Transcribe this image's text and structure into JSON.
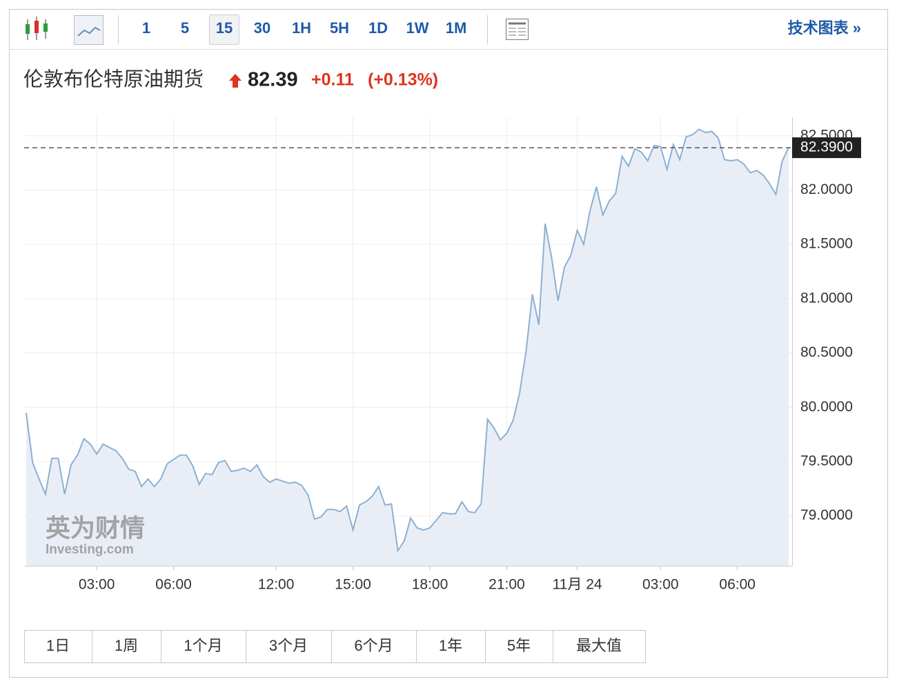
{
  "toolbar": {
    "intervals": [
      "1",
      "5",
      "15",
      "30",
      "1H",
      "5H",
      "1D",
      "1W",
      "1M"
    ],
    "active_interval_index": 2,
    "link": "技术图表 »"
  },
  "header": {
    "title": "伦敦布伦特原油期货",
    "price": "82.39",
    "change": "+0.11",
    "change_pct": "(+0.13%)"
  },
  "chart_data": {
    "type": "area",
    "categories": [
      null,
      null,
      null,
      null,
      null,
      null,
      null,
      null,
      null,
      null,
      null,
      "03:00",
      null,
      null,
      null,
      null,
      null,
      null,
      null,
      null,
      null,
      null,
      null,
      "06:00",
      null,
      null,
      null,
      null,
      null,
      null,
      null,
      null,
      null,
      null,
      null,
      null,
      null,
      null,
      null,
      "12:00",
      null,
      null,
      null,
      null,
      null,
      null,
      null,
      null,
      null,
      null,
      null,
      "15:00",
      null,
      null,
      null,
      null,
      null,
      null,
      null,
      null,
      null,
      null,
      null,
      "18:00",
      null,
      null,
      null,
      null,
      null,
      null,
      null,
      null,
      null,
      null,
      null,
      "21:00",
      null,
      null,
      null,
      null,
      null,
      null,
      null,
      null,
      null,
      null,
      "11月 24",
      null,
      null,
      null,
      null,
      null,
      null,
      null,
      null,
      null,
      null,
      null,
      null,
      "03:00",
      null,
      null,
      null,
      null,
      null,
      null,
      null,
      null,
      null,
      null,
      null,
      "06:00",
      null,
      null,
      null,
      null,
      null,
      null,
      null,
      null
    ],
    "values": [
      79.95,
      79.49,
      79.34,
      79.2,
      79.53,
      79.53,
      79.2,
      79.47,
      79.56,
      79.71,
      79.66,
      79.57,
      79.66,
      79.63,
      79.6,
      79.53,
      79.43,
      79.41,
      79.27,
      79.34,
      79.27,
      79.34,
      79.48,
      79.52,
      79.56,
      79.56,
      79.46,
      79.29,
      79.39,
      79.38,
      79.49,
      79.51,
      79.41,
      79.42,
      79.44,
      79.41,
      79.47,
      79.36,
      79.31,
      79.34,
      79.32,
      79.3,
      79.31,
      79.28,
      79.19,
      78.97,
      78.99,
      79.06,
      79.06,
      79.04,
      79.09,
      78.87,
      79.1,
      79.13,
      79.18,
      79.27,
      79.1,
      79.11,
      78.68,
      78.77,
      78.98,
      78.89,
      78.87,
      78.89,
      78.96,
      79.03,
      79.02,
      79.02,
      79.13,
      79.04,
      79.03,
      79.11,
      79.89,
      79.81,
      79.7,
      79.76,
      79.88,
      80.13,
      80.51,
      81.04,
      80.76,
      81.69,
      81.38,
      80.98,
      81.29,
      81.4,
      81.63,
      81.5,
      81.81,
      82.03,
      81.77,
      81.9,
      81.97,
      82.31,
      82.22,
      82.38,
      82.35,
      82.27,
      82.41,
      82.4,
      82.19,
      82.42,
      82.28,
      82.49,
      82.51,
      82.56,
      82.53,
      82.54,
      82.48,
      82.28,
      82.27,
      82.28,
      82.24,
      82.16,
      82.18,
      82.14,
      82.06,
      81.96,
      82.27,
      82.39
    ],
    "color": "#8bb0d3",
    "fill": "#e9eef6",
    "ylim": [
      78.54,
      82.67
    ],
    "yticks": [
      {
        "value": 79,
        "label": "79.0000"
      },
      {
        "value": 79.5,
        "label": "79.5000"
      },
      {
        "value": 80,
        "label": "80.0000"
      },
      {
        "value": 80.5,
        "label": "80.5000"
      },
      {
        "value": 81,
        "label": "81.0000"
      },
      {
        "value": 81.5,
        "label": "81.5000"
      },
      {
        "value": 82,
        "label": "82.0000"
      },
      {
        "value": 82.5,
        "label": "82.5000"
      }
    ],
    "grid": true,
    "price_line": {
      "value": 82.39,
      "label": "82.3900"
    }
  },
  "watermark": {
    "brand": "英为财情",
    "site": "Investing.com"
  },
  "ranges": [
    "1日",
    "1周",
    "1个月",
    "3个月",
    "6个月",
    "1年",
    "5年",
    "最大值"
  ]
}
